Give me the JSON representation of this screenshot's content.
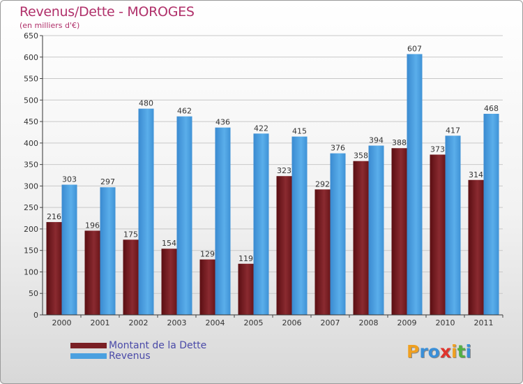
{
  "title": "Revenus/Dette - MOROGES",
  "subtitle": "(en milliers d'€)",
  "colors": {
    "dette": "#7a1f24",
    "revenus": "#4aa0e0",
    "title": "#b0306a",
    "grid": "#c8c8c8",
    "legend_text": "#4a4aa8"
  },
  "chart_data": {
    "type": "bar",
    "title": "Revenus/Dette - MOROGES",
    "ylabel": "(en milliers d'€)",
    "xlabel": "",
    "ylim": [
      0,
      650
    ],
    "yticks": [
      0,
      50,
      100,
      150,
      200,
      250,
      300,
      350,
      400,
      450,
      500,
      550,
      600,
      650
    ],
    "grid": true,
    "categories": [
      "2000",
      "2001",
      "2002",
      "2003",
      "2004",
      "2005",
      "2006",
      "2007",
      "2008",
      "2009",
      "2010",
      "2011"
    ],
    "series": [
      {
        "name": "Montant de la Dette",
        "values": [
          216,
          196,
          175,
          154,
          129,
          119,
          323,
          292,
          358,
          388,
          373,
          314
        ]
      },
      {
        "name": "Revenus",
        "values": [
          303,
          297,
          480,
          462,
          436,
          422,
          415,
          376,
          394,
          607,
          417,
          468
        ]
      }
    ]
  },
  "legend": {
    "dette_label": "Montant de la Dette",
    "revenus_label": "Revenus"
  },
  "logo": {
    "text": "Proxiti",
    "letters": [
      {
        "char": "P",
        "color": "#f0a020"
      },
      {
        "char": "r",
        "color": "#3a8fd8"
      },
      {
        "char": "o",
        "color": "#3a8fd8"
      },
      {
        "char": "x",
        "color": "#e0342c"
      },
      {
        "char": "i",
        "color": "#f0a020"
      },
      {
        "char": "t",
        "color": "#52b044"
      },
      {
        "char": "i",
        "color": "#3a8fd8"
      }
    ]
  }
}
